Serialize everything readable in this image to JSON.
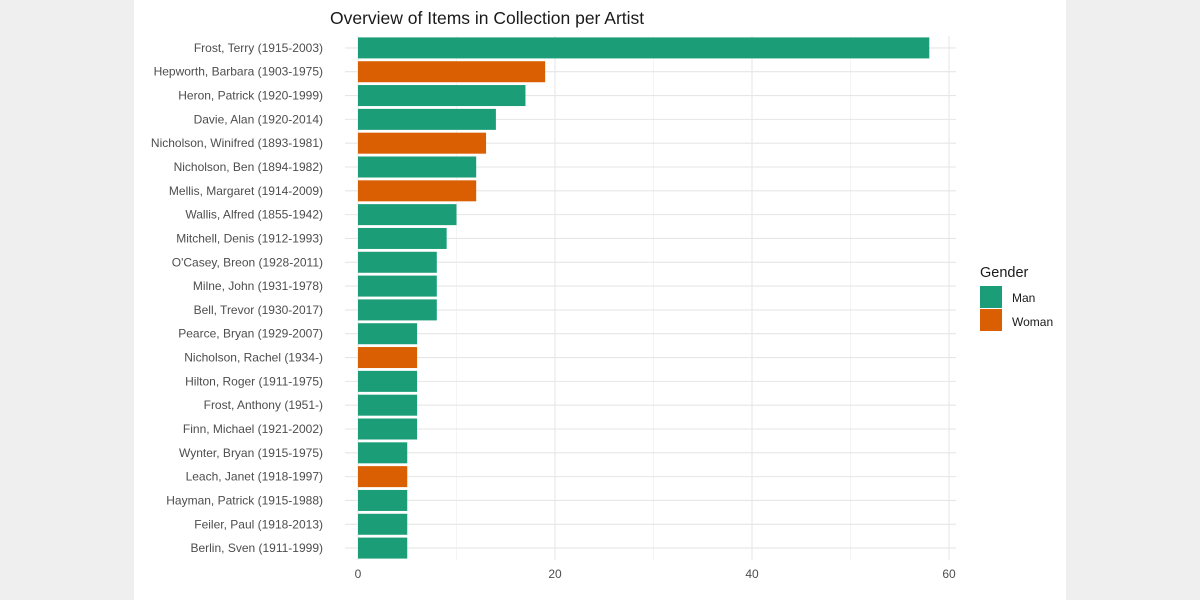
{
  "chart_data": {
    "type": "bar",
    "orientation": "horizontal",
    "title": "Overview of Items in Collection per Artist",
    "xlabel": "",
    "ylabel": "",
    "xlim": [
      0,
      61
    ],
    "x_ticks": [
      0,
      20,
      40,
      60
    ],
    "grid": true,
    "legend": {
      "title": "Gender",
      "position": "right"
    },
    "series_colors": {
      "Man": "#1b9e77",
      "Woman": "#d95f02"
    },
    "bars": [
      {
        "label": "Frost, Terry (1915-2003)",
        "value": 58,
        "gender": "Man"
      },
      {
        "label": "Hepworth, Barbara (1903-1975)",
        "value": 19,
        "gender": "Woman"
      },
      {
        "label": "Heron, Patrick (1920-1999)",
        "value": 17,
        "gender": "Man"
      },
      {
        "label": "Davie, Alan (1920-2014)",
        "value": 14,
        "gender": "Man"
      },
      {
        "label": "Nicholson, Winifred (1893-1981)",
        "value": 13,
        "gender": "Woman"
      },
      {
        "label": "Nicholson, Ben (1894-1982)",
        "value": 12,
        "gender": "Man"
      },
      {
        "label": "Mellis, Margaret (1914-2009)",
        "value": 12,
        "gender": "Woman"
      },
      {
        "label": "Wallis, Alfred (1855-1942)",
        "value": 10,
        "gender": "Man"
      },
      {
        "label": "Mitchell, Denis (1912-1993)",
        "value": 9,
        "gender": "Man"
      },
      {
        "label": "O'Casey, Breon (1928-2011)",
        "value": 8,
        "gender": "Man"
      },
      {
        "label": "Milne, John (1931-1978)",
        "value": 8,
        "gender": "Man"
      },
      {
        "label": "Bell, Trevor (1930-2017)",
        "value": 8,
        "gender": "Man"
      },
      {
        "label": "Pearce, Bryan (1929-2007)",
        "value": 6,
        "gender": "Man"
      },
      {
        "label": "Nicholson, Rachel (1934-)",
        "value": 6,
        "gender": "Woman"
      },
      {
        "label": "Hilton, Roger (1911-1975)",
        "value": 6,
        "gender": "Man"
      },
      {
        "label": "Frost, Anthony (1951-)",
        "value": 6,
        "gender": "Man"
      },
      {
        "label": "Finn, Michael (1921-2002)",
        "value": 6,
        "gender": "Man"
      },
      {
        "label": "Wynter, Bryan (1915-1975)",
        "value": 5,
        "gender": "Man"
      },
      {
        "label": "Leach, Janet (1918-1997)",
        "value": 5,
        "gender": "Woman"
      },
      {
        "label": "Hayman, Patrick (1915-1988)",
        "value": 5,
        "gender": "Man"
      },
      {
        "label": "Feiler, Paul (1918-2013)",
        "value": 5,
        "gender": "Man"
      },
      {
        "label": "Berlin, Sven (1911-1999)",
        "value": 5,
        "gender": "Man"
      }
    ]
  }
}
